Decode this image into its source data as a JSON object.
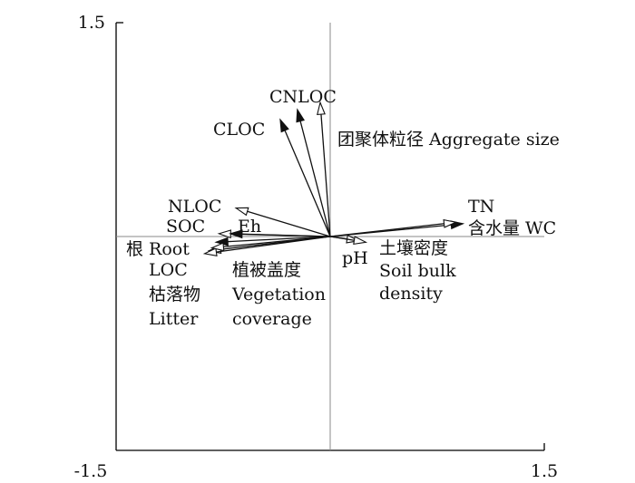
{
  "chart_data": {
    "type": "scatter",
    "subtype": "ordination-biplot",
    "title": "",
    "xlabel": "",
    "ylabel": "",
    "xlim": [
      -1.5,
      1.5
    ],
    "ylim": [
      -1.5,
      1.5
    ],
    "x_ticks": [
      "-1.5",
      "1.5"
    ],
    "y_ticks": [
      "1.5"
    ],
    "grid": false,
    "reference_lines": [
      "x = 0",
      "y = 0"
    ],
    "colors": {
      "axis": "#000000",
      "reference": "#888888",
      "arrow": "#111111"
    },
    "vectors": [
      {
        "id": "cloc",
        "labels": [
          "CLOC"
        ],
        "x": -0.35,
        "y": 0.82,
        "head": "filled"
      },
      {
        "id": "cnloc",
        "labels": [
          "CNLOC"
        ],
        "x": -0.23,
        "y": 0.89,
        "head": "filled"
      },
      {
        "id": "aggregate",
        "labels": [
          "团聚体粒径 Aggregate size"
        ],
        "x": -0.07,
        "y": 0.94,
        "head": "open"
      },
      {
        "id": "nloc",
        "labels": [
          "NLOC"
        ],
        "x": -0.66,
        "y": 0.2,
        "head": "open"
      },
      {
        "id": "soc",
        "labels": [
          "SOC"
        ],
        "x": -0.78,
        "y": 0.02,
        "head": "open"
      },
      {
        "id": "eh",
        "labels": [
          "Eh"
        ],
        "x": -0.7,
        "y": 0.02,
        "head": "filled"
      },
      {
        "id": "root",
        "labels": [
          "根 Root"
        ],
        "x": -0.8,
        "y": -0.04,
        "head": "filled"
      },
      {
        "id": "loc",
        "labels": [
          "LOC"
        ],
        "x": -0.85,
        "y": -0.1,
        "head": "open"
      },
      {
        "id": "litter",
        "labels": [
          "枯落物",
          "Litter"
        ],
        "x": -0.88,
        "y": -0.12,
        "head": "open"
      },
      {
        "id": "vegetation",
        "labels": [
          "植被盖度",
          "Vegetation",
          "coverage"
        ],
        "x": -0.83,
        "y": -0.08,
        "head": "open"
      },
      {
        "id": "tn",
        "labels": [
          "TN"
        ],
        "x": 0.93,
        "y": 0.09,
        "head": "filled"
      },
      {
        "id": "wc",
        "labels": [
          "含水量 WC"
        ],
        "x": 0.88,
        "y": 0.1,
        "head": "open"
      },
      {
        "id": "ph",
        "labels": [
          "pH"
        ],
        "x": 0.2,
        "y": -0.03,
        "head": "open"
      },
      {
        "id": "bulk",
        "labels": [
          "土壤密度",
          "Soil bulk",
          "density"
        ],
        "x": 0.25,
        "y": -0.04,
        "head": "open"
      }
    ]
  }
}
